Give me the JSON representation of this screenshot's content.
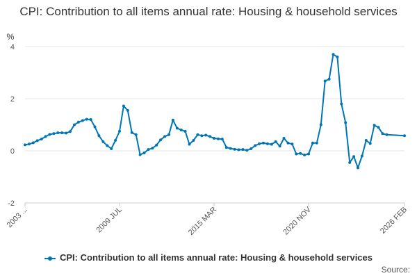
{
  "chart_data": {
    "type": "line",
    "title": "CPI: Contribution to all items annual rate: Housing & household services",
    "ylabel": "%",
    "xlabel": "",
    "ylim": [
      -2,
      4
    ],
    "yticks": [
      -2,
      0,
      2,
      4
    ],
    "xticks": [
      "2003 ...",
      "2009 JUL",
      "2015 MAR",
      "2020 NOV",
      "2026 FEB"
    ],
    "grid": true,
    "legend_position": "bottom",
    "color": "#0075b4",
    "series": [
      {
        "name": "CPI: Contribution to all items annual rate: Housing & household services",
        "points": [
          [
            "2003-01",
            0.23
          ],
          [
            "2003-04",
            0.26
          ],
          [
            "2003-07",
            0.31
          ],
          [
            "2003-10",
            0.39
          ],
          [
            "2004-01",
            0.45
          ],
          [
            "2004-04",
            0.55
          ],
          [
            "2004-07",
            0.63
          ],
          [
            "2004-10",
            0.66
          ],
          [
            "2005-01",
            0.69
          ],
          [
            "2005-04",
            0.69
          ],
          [
            "2005-07",
            0.68
          ],
          [
            "2005-10",
            0.74
          ],
          [
            "2006-01",
            1.0
          ],
          [
            "2006-04",
            1.1
          ],
          [
            "2006-07",
            1.16
          ],
          [
            "2006-10",
            1.21
          ],
          [
            "2007-01",
            1.2
          ],
          [
            "2007-04",
            0.92
          ],
          [
            "2007-07",
            0.58
          ],
          [
            "2007-10",
            0.35
          ],
          [
            "2008-01",
            0.2
          ],
          [
            "2008-04",
            0.08
          ],
          [
            "2008-07",
            0.4
          ],
          [
            "2008-10",
            0.75
          ],
          [
            "2009-01",
            1.72
          ],
          [
            "2009-04",
            1.55
          ],
          [
            "2009-07",
            0.7
          ],
          [
            "2009-10",
            0.62
          ],
          [
            "2010-01",
            -0.15
          ],
          [
            "2010-04",
            -0.08
          ],
          [
            "2010-07",
            0.05
          ],
          [
            "2010-10",
            0.1
          ],
          [
            "2011-01",
            0.22
          ],
          [
            "2011-04",
            0.42
          ],
          [
            "2011-07",
            0.55
          ],
          [
            "2011-10",
            0.62
          ],
          [
            "2012-01",
            1.18
          ],
          [
            "2012-04",
            0.87
          ],
          [
            "2012-07",
            0.8
          ],
          [
            "2012-10",
            0.75
          ],
          [
            "2013-01",
            0.25
          ],
          [
            "2013-04",
            0.4
          ],
          [
            "2013-07",
            0.62
          ],
          [
            "2013-10",
            0.58
          ],
          [
            "2014-01",
            0.6
          ],
          [
            "2014-04",
            0.55
          ],
          [
            "2014-07",
            0.48
          ],
          [
            "2014-10",
            0.46
          ],
          [
            "2015-01",
            0.45
          ],
          [
            "2015-04",
            0.13
          ],
          [
            "2015-07",
            0.09
          ],
          [
            "2015-10",
            0.06
          ],
          [
            "2016-01",
            0.04
          ],
          [
            "2016-04",
            0.05
          ],
          [
            "2016-07",
            0.02
          ],
          [
            "2016-10",
            0.08
          ],
          [
            "2017-01",
            0.2
          ],
          [
            "2017-04",
            0.27
          ],
          [
            "2017-07",
            0.3
          ],
          [
            "2017-10",
            0.27
          ],
          [
            "2018-01",
            0.25
          ],
          [
            "2018-04",
            0.35
          ],
          [
            "2018-07",
            0.18
          ],
          [
            "2018-10",
            0.48
          ],
          [
            "2019-01",
            0.3
          ],
          [
            "2019-04",
            0.26
          ],
          [
            "2019-07",
            -0.12
          ],
          [
            "2019-10",
            -0.1
          ],
          [
            "2020-01",
            -0.16
          ],
          [
            "2020-04",
            -0.12
          ],
          [
            "2020-07",
            0.3
          ],
          [
            "2020-10",
            0.3
          ],
          [
            "2021-01",
            1.0
          ],
          [
            "2021-04",
            2.68
          ],
          [
            "2021-07",
            2.75
          ],
          [
            "2021-10",
            3.7
          ],
          [
            "2022-01",
            3.6
          ],
          [
            "2022-04",
            1.8
          ],
          [
            "2022-07",
            1.08
          ],
          [
            "2022-10",
            -0.45
          ],
          [
            "2023-01",
            -0.22
          ],
          [
            "2023-04",
            -0.65
          ],
          [
            "2023-07",
            -0.2
          ],
          [
            "2023-10",
            0.4
          ],
          [
            "2024-01",
            0.28
          ],
          [
            "2024-04",
            0.98
          ],
          [
            "2024-07",
            0.9
          ],
          [
            "2024-10",
            0.66
          ],
          [
            "2025-01",
            0.62
          ],
          [
            "2026-02",
            0.58
          ]
        ]
      }
    ]
  },
  "credit": "Source:"
}
